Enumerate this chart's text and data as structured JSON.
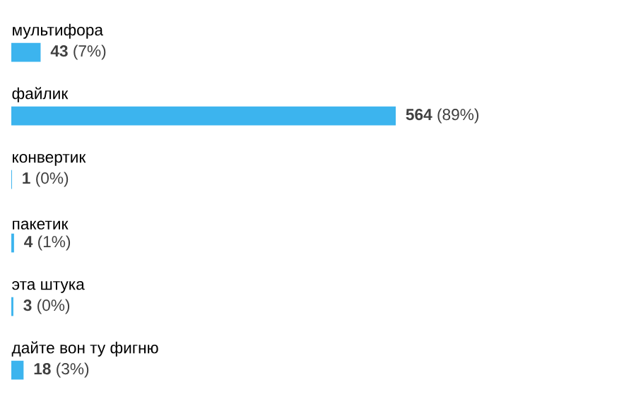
{
  "chart_data": {
    "type": "bar",
    "orientation": "horizontal",
    "categories": [
      "мультифора",
      "файлик",
      "конвертик",
      "пакетик",
      "эта штука",
      "дайте вон ту фигню"
    ],
    "values": [
      43,
      564,
      1,
      4,
      3,
      18
    ],
    "value_labels": [
      "**43** (7%)",
      "**564** (89%)",
      "**1** (0%)",
      "**4** (1%)",
      "**3** (0%)",
      "**18** (3%)"
    ],
    "color": "#3cb4ee"
  }
}
